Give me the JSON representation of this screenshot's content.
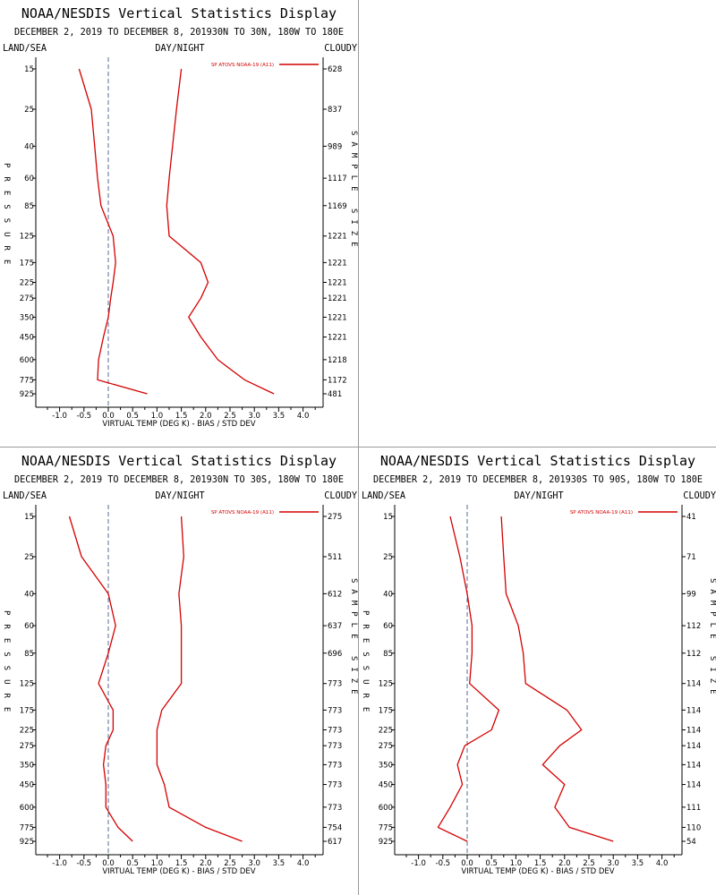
{
  "colors": {
    "series": "#d40000",
    "zero_line": "#5a6a9a",
    "axes": "#000000"
  },
  "chart_data": [
    {
      "type": "line",
      "title": "NOAA/NESDIS Vertical Statistics Display",
      "subtitle": "DECEMBER 2, 2019 TO DECEMBER 8, 201930N TO 30N, 180W TO 180E",
      "corner_labels": {
        "left": "LAND/SEA",
        "center": "DAY/NIGHT",
        "right": "CLOUDY"
      },
      "xlabel": "VIRTUAL TEMP (DEG K) - BIAS / STD DEV",
      "ylabel": "PRESSURE",
      "y2label": "SAMPLE SIZE",
      "legend": "SP ATOVS NOAA-19 (A11)",
      "legend_position": "top-right",
      "xlim": [
        -1.5,
        4.5
      ],
      "xticks": [
        "-1.0",
        "-0.5",
        "0.0",
        "0.5",
        "1.0",
        "1.5",
        "2.0",
        "2.5",
        "3.0",
        "3.5",
        "4.0"
      ],
      "y": [
        15,
        25,
        40,
        60,
        85,
        125,
        175,
        225,
        275,
        350,
        450,
        600,
        775,
        925
      ],
      "sample_size": [
        "628",
        "837",
        "989",
        "1117",
        "1169",
        "1221",
        "1221",
        "1221",
        "1221",
        "1221",
        "1221",
        "1218",
        "1172",
        "481"
      ],
      "series": [
        {
          "role": "bias",
          "values": [
            -0.6,
            -0.35,
            -0.28,
            -0.22,
            -0.15,
            0.1,
            0.15,
            0.1,
            0.05,
            0.0,
            -0.1,
            -0.2,
            -0.22,
            0.8
          ]
        },
        {
          "role": "std_dev",
          "values": [
            1.5,
            1.4,
            1.32,
            1.25,
            1.2,
            1.25,
            1.9,
            2.05,
            1.9,
            1.65,
            1.9,
            2.25,
            2.8,
            3.4
          ]
        }
      ]
    },
    {
      "type": "line",
      "title": "NOAA/NESDIS Vertical Statistics Display",
      "subtitle": "DECEMBER 2, 2019 TO DECEMBER 8, 201930N TO 30S, 180W TO 180E",
      "corner_labels": {
        "left": "LAND/SEA",
        "center": "DAY/NIGHT",
        "right": "CLOUDY"
      },
      "xlabel": "VIRTUAL TEMP (DEG K) - BIAS / STD DEV",
      "ylabel": "PRESSURE",
      "y2label": "SAMPLE SIZE",
      "legend": "SP ATOVS NOAA-19 (A11)",
      "legend_position": "top-right",
      "xlim": [
        -1.5,
        4.5
      ],
      "xticks": [
        "-1.0",
        "-0.5",
        "0.0",
        "0.5",
        "1.0",
        "1.5",
        "2.0",
        "2.5",
        "3.0",
        "3.5",
        "4.0"
      ],
      "y": [
        15,
        25,
        40,
        60,
        85,
        125,
        175,
        225,
        275,
        350,
        450,
        600,
        775,
        925
      ],
      "sample_size": [
        "275",
        "511",
        "612",
        "637",
        "696",
        "773",
        "773",
        "773",
        "773",
        "773",
        "773",
        "773",
        "754",
        "617"
      ],
      "series": [
        {
          "role": "bias",
          "values": [
            -0.8,
            -0.55,
            0.0,
            0.15,
            0.0,
            -0.2,
            0.1,
            0.1,
            -0.05,
            -0.1,
            -0.05,
            -0.05,
            0.2,
            0.5
          ]
        },
        {
          "role": "std_dev",
          "values": [
            1.5,
            1.55,
            1.45,
            1.5,
            1.5,
            1.5,
            1.1,
            1.0,
            1.0,
            1.0,
            1.15,
            1.25,
            2.0,
            2.75
          ]
        }
      ]
    },
    {
      "type": "line",
      "title": "NOAA/NESDIS Vertical Statistics Display",
      "subtitle": "DECEMBER 2, 2019 TO DECEMBER 8, 201930S TO 90S, 180W TO 180E",
      "corner_labels": {
        "left": "LAND/SEA",
        "center": "DAY/NIGHT",
        "right": "CLOUDY"
      },
      "xlabel": "VIRTUAL TEMP (DEG K) - BIAS / STD DEV",
      "ylabel": "PRESSURE",
      "y2label": "SAMPLE SIZE",
      "legend": "SP ATOVS NOAA-19 (A11)",
      "legend_position": "top-right",
      "xlim": [
        -1.5,
        4.5
      ],
      "xticks": [
        "-1.0",
        "-0.5",
        "0.0",
        "0.5",
        "1.0",
        "1.5",
        "2.0",
        "2.5",
        "3.0",
        "3.5",
        "4.0"
      ],
      "y": [
        15,
        25,
        40,
        60,
        85,
        125,
        175,
        225,
        275,
        350,
        450,
        600,
        775,
        925
      ],
      "sample_size": [
        "41",
        "71",
        "99",
        "112",
        "112",
        "114",
        "114",
        "114",
        "114",
        "114",
        "114",
        "111",
        "110",
        "54"
      ],
      "series": [
        {
          "role": "bias",
          "values": [
            -0.35,
            -0.15,
            0.0,
            0.1,
            0.1,
            0.05,
            0.65,
            0.5,
            -0.05,
            -0.2,
            -0.1,
            -0.35,
            -0.6,
            0.0
          ]
        },
        {
          "role": "std_dev",
          "values": [
            0.7,
            0.75,
            0.8,
            1.05,
            1.15,
            1.2,
            2.05,
            2.35,
            1.9,
            1.55,
            2.0,
            1.8,
            2.1,
            3.0
          ]
        }
      ]
    }
  ]
}
